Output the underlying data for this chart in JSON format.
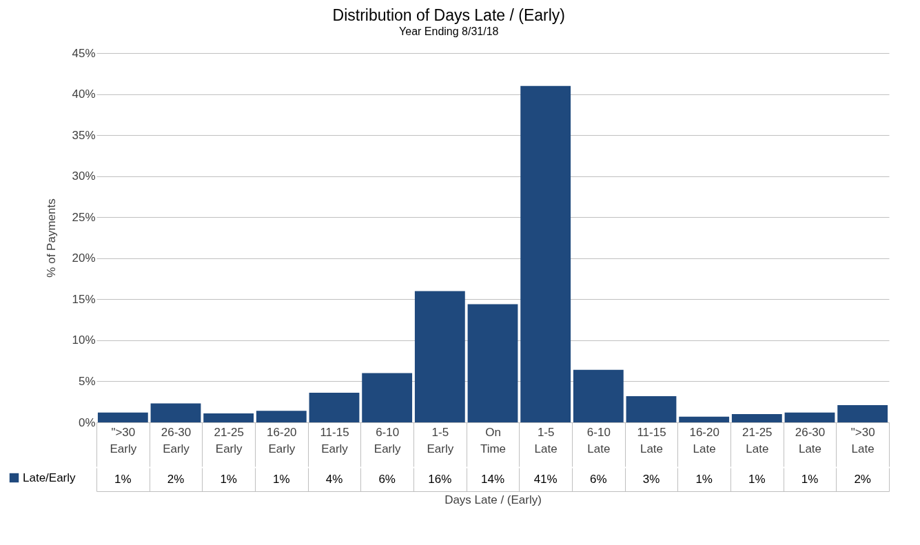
{
  "chart_data": {
    "type": "bar",
    "title": "Distribution of Days Late / (Early)",
    "subtitle": "Year Ending 8/31/18",
    "xlabel": "Days Late / (Early)",
    "ylabel": "% of Payments",
    "categories": [
      "\">30\nEarly",
      "26-30\nEarly",
      "21-25\nEarly",
      "16-20\nEarly",
      "11-15\nEarly",
      "6-10\nEarly",
      "1-5\nEarly",
      "On\nTime",
      "1-5\nLate",
      "6-10\nLate",
      "11-15\nLate",
      "16-20\nLate",
      "21-25\nLate",
      "26-30\nLate",
      "\">30\nLate"
    ],
    "series": [
      {
        "name": "Late/Early",
        "color": "#1f497d",
        "values": [
          1.2,
          2.3,
          1.1,
          1.4,
          3.6,
          6.0,
          16.0,
          14.4,
          41.0,
          6.4,
          3.2,
          0.7,
          1.0,
          1.2,
          2.1
        ],
        "value_labels": [
          "1%",
          "2%",
          "1%",
          "1%",
          "4%",
          "6%",
          "16%",
          "14%",
          "41%",
          "6%",
          "3%",
          "1%",
          "1%",
          "1%",
          "2%"
        ]
      }
    ],
    "ylim": [
      0,
      45
    ],
    "yticks": [
      {
        "value": 0,
        "label": "0%"
      },
      {
        "value": 5,
        "label": "5%"
      },
      {
        "value": 10,
        "label": "10%"
      },
      {
        "value": 15,
        "label": "15%"
      },
      {
        "value": 20,
        "label": "20%"
      },
      {
        "value": 25,
        "label": "25%"
      },
      {
        "value": 30,
        "label": "30%"
      },
      {
        "value": 35,
        "label": "35%"
      },
      {
        "value": 40,
        "label": "40%"
      },
      {
        "value": 45,
        "label": "45%"
      }
    ],
    "grid": "y",
    "legend": "bottom left"
  }
}
